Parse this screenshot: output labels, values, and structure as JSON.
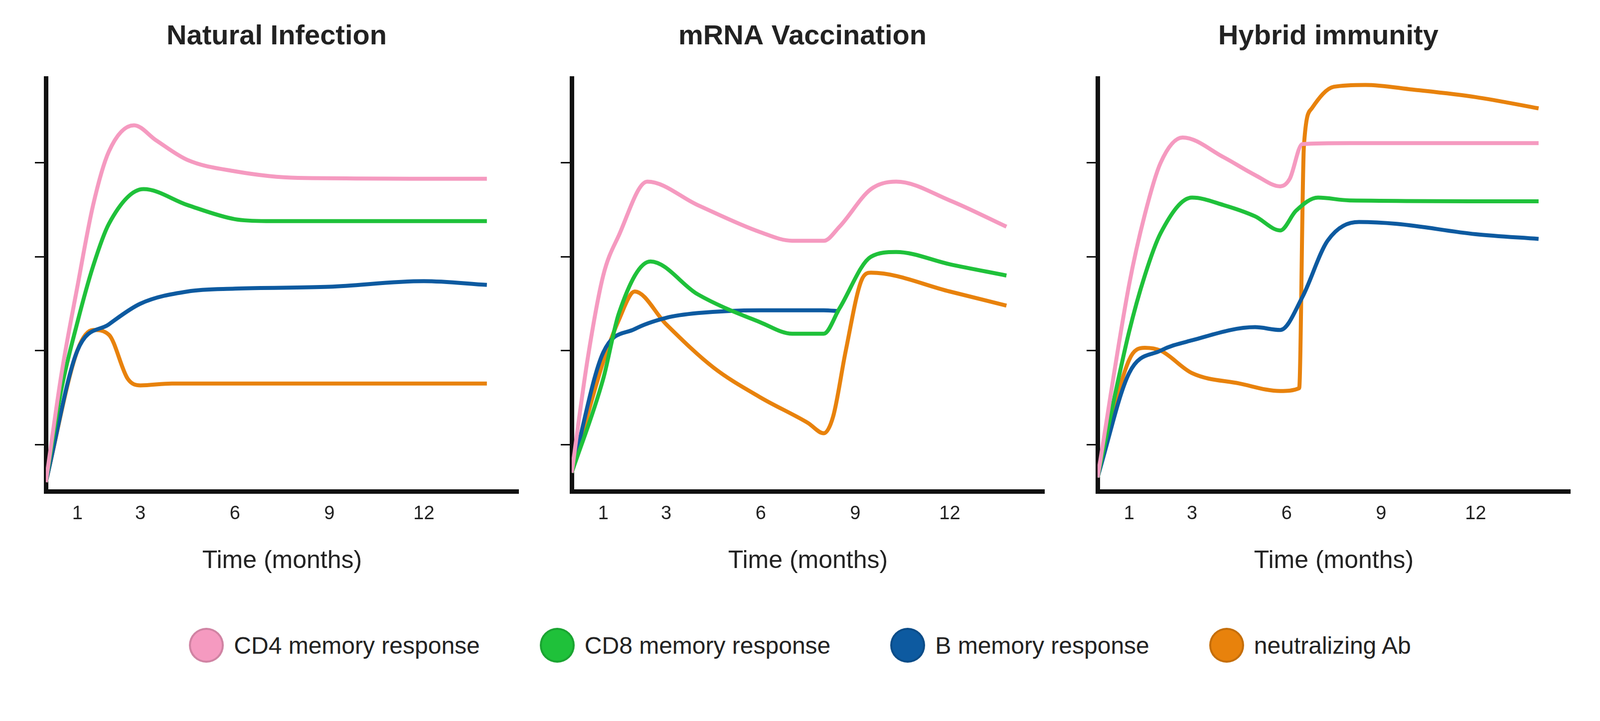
{
  "chart_data": [
    {
      "type": "line",
      "title": "Natural Infection",
      "x_label": "Time (months)",
      "xlim": [
        0,
        15
      ],
      "xticks": [
        1,
        3,
        6,
        9,
        12
      ],
      "ylim": [
        0,
        4.4
      ],
      "yticks": [
        0.5,
        1.5,
        2.5,
        3.5
      ],
      "grid": false,
      "tick_labels": "x",
      "legend": "bottom",
      "series": [
        {
          "name": "CD4 memory response",
          "color": "#f59ac0",
          "x": [
            0,
            0.5,
            1,
            1.5,
            2,
            2.8,
            3.5,
            4.5,
            6,
            8,
            14
          ],
          "values": [
            0.1,
            1.26,
            2.18,
            3.05,
            3.62,
            3.9,
            3.74,
            3.53,
            3.41,
            3.34,
            3.33
          ]
        },
        {
          "name": "CD8 memory response",
          "color": "#1fc13a",
          "x": [
            0,
            0.5,
            1,
            1.5,
            2,
            3.1,
            4.5,
            6,
            7,
            9,
            14
          ],
          "values": [
            0.1,
            1.1,
            1.8,
            2.4,
            2.85,
            3.22,
            3.05,
            2.9,
            2.88,
            2.88,
            2.88
          ]
        },
        {
          "name": "B memory response",
          "color": "#0d5aa0",
          "x": [
            0,
            1,
            2,
            3,
            4.5,
            6,
            9,
            12,
            14
          ],
          "values": [
            0.1,
            1.5,
            1.78,
            2.0,
            2.13,
            2.16,
            2.18,
            2.24,
            2.2
          ]
        },
        {
          "name": "neutralizing Ab",
          "color": "#e8820c",
          "x": [
            0,
            1,
            1.5,
            2,
            2.6,
            3,
            4,
            14
          ],
          "values": [
            0.1,
            1.5,
            1.72,
            1.67,
            1.2,
            1.13,
            1.15,
            1.15
          ]
        }
      ]
    },
    {
      "type": "line",
      "title": "mRNA Vaccination",
      "x_label": "Time (months)",
      "xlim": [
        0,
        15
      ],
      "xticks": [
        1,
        3,
        6,
        9,
        12
      ],
      "ylim": [
        0,
        4.4
      ],
      "yticks": [
        0.5,
        1.5,
        2.5,
        3.5
      ],
      "grid": false,
      "tick_labels": "x",
      "legend": "bottom",
      "series": [
        {
          "name": "CD4 memory response",
          "color": "#f59ac0",
          "x": [
            0,
            0.5,
            1,
            1.5,
            2.4,
            4,
            6,
            7,
            8,
            8.5,
            9.5,
            10.3,
            12,
            13.8
          ],
          "values": [
            0.2,
            1.4,
            2.3,
            2.73,
            3.3,
            3.05,
            2.76,
            2.67,
            2.67,
            2.82,
            3.22,
            3.3,
            3.1,
            2.82
          ]
        },
        {
          "name": "CD8 memory response",
          "color": "#1fc13a",
          "x": [
            0,
            1,
            1.5,
            2.5,
            4,
            6,
            7,
            8,
            8.5,
            9.5,
            10.3,
            12,
            13.8
          ],
          "values": [
            0.2,
            1.2,
            1.9,
            2.45,
            2.1,
            1.8,
            1.68,
            1.68,
            1.95,
            2.5,
            2.55,
            2.42,
            2.3
          ]
        },
        {
          "name": "B memory response",
          "color": "#0d5aa0",
          "x": [
            0,
            1,
            2,
            3,
            4,
            6,
            8,
            8.5
          ],
          "values": [
            0.2,
            1.48,
            1.73,
            1.85,
            1.9,
            1.93,
            1.93,
            1.92
          ]
        },
        {
          "name": "neutralizing Ab",
          "color": "#e8820c",
          "x": [
            0,
            1,
            1.5,
            2,
            3,
            4.5,
            6,
            7.5,
            8,
            8.3,
            8.7,
            9.2,
            9.5,
            12,
            13.8
          ],
          "values": [
            0.2,
            1.38,
            1.83,
            2.13,
            1.78,
            1.32,
            1.0,
            0.73,
            0.62,
            0.8,
            1.5,
            2.25,
            2.33,
            2.13,
            1.98
          ]
        }
      ]
    },
    {
      "type": "line",
      "title": "Hybrid immunity",
      "x_label": "Time (months)",
      "xlim": [
        0,
        15
      ],
      "xticks": [
        1,
        3,
        6,
        9,
        12
      ],
      "ylim": [
        0,
        4.4
      ],
      "yticks": [
        0.5,
        1.5,
        2.5,
        3.5
      ],
      "grid": false,
      "tick_labels": "x",
      "legend": "bottom",
      "series": [
        {
          "name": "CD4 memory response",
          "color": "#f59ac0",
          "x": [
            0,
            1,
            1.5,
            2,
            2.7,
            4,
            5,
            5.8,
            6.1,
            6.5,
            8,
            14
          ],
          "values": [
            0.15,
            2.2,
            2.95,
            3.5,
            3.77,
            3.56,
            3.37,
            3.25,
            3.33,
            3.7,
            3.71,
            3.71
          ]
        },
        {
          "name": "CD8 memory response",
          "color": "#1fc13a",
          "x": [
            0,
            1,
            1.5,
            2,
            3,
            4,
            5,
            5.8,
            6.3,
            7,
            8,
            14
          ],
          "values": [
            0.15,
            1.7,
            2.3,
            2.75,
            3.13,
            3.05,
            2.93,
            2.78,
            2.99,
            3.13,
            3.1,
            3.09
          ]
        },
        {
          "name": "B memory response",
          "color": "#0d5aa0",
          "x": [
            0,
            1,
            2,
            3,
            5,
            5.8,
            6.5,
            7.3,
            8.3,
            9.5,
            12,
            14
          ],
          "values": [
            0.15,
            1.26,
            1.5,
            1.61,
            1.75,
            1.72,
            2.07,
            2.67,
            2.87,
            2.85,
            2.74,
            2.69
          ]
        },
        {
          "name": "neutralizing Ab",
          "color": "#e8820c",
          "x": [
            0,
            1,
            1.5,
            2,
            3,
            4.5,
            5.8,
            6.4,
            6.55,
            6.8,
            7.5,
            8.5,
            10,
            12,
            14
          ],
          "values": [
            0.15,
            1.4,
            1.53,
            1.5,
            1.26,
            1.15,
            1.07,
            1.1,
            3.68,
            4.08,
            4.31,
            4.33,
            4.28,
            4.2,
            4.08
          ]
        }
      ]
    }
  ]
}
